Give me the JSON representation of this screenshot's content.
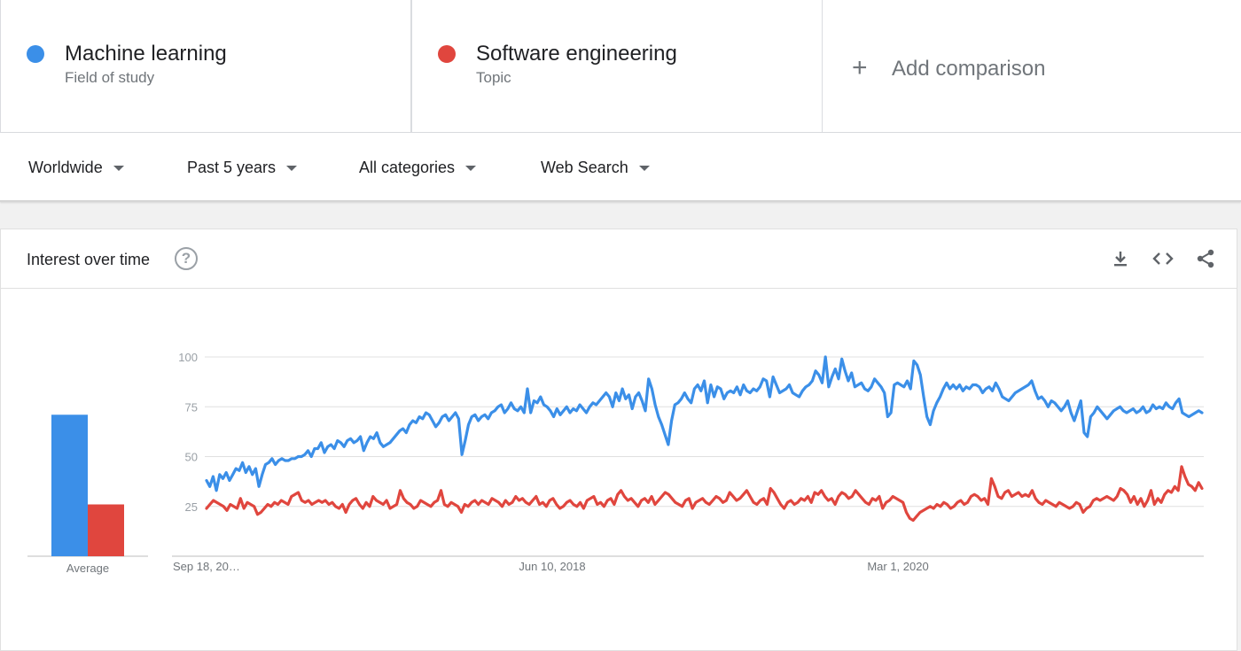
{
  "terms": [
    {
      "name": "Machine learning",
      "type": "Field of study",
      "color": "#3b8fe8"
    },
    {
      "name": "Software engineering",
      "type": "Topic",
      "color": "#e0463e"
    }
  ],
  "add_comparison": {
    "plus": "+",
    "label": "Add comparison"
  },
  "filters": {
    "region": "Worldwide",
    "time": "Past 5 years",
    "category": "All categories",
    "search_type": "Web Search"
  },
  "card": {
    "title": "Interest over time",
    "help_glyph": "?",
    "icons": [
      "download-icon",
      "embed-icon",
      "share-icon"
    ]
  },
  "chart_data": {
    "type": "line",
    "x_ticks": [
      "Sep 18, 20…",
      "Jun 10, 2018",
      "Mar 1, 2020"
    ],
    "y_ticks": [
      25,
      50,
      75,
      100
    ],
    "ylim": [
      0,
      100
    ],
    "xlabel": "",
    "ylabel": "",
    "average_label": "Average",
    "averages": [
      71,
      26
    ],
    "series": [
      {
        "name": "Machine learning",
        "color": "#3b8fe8",
        "values": [
          38,
          35,
          40,
          33,
          41,
          39,
          42,
          38,
          41,
          44,
          43,
          47,
          42,
          45,
          41,
          44,
          35,
          41,
          46,
          47,
          49,
          46,
          48,
          49,
          48,
          48,
          49,
          49,
          50,
          50,
          51,
          53,
          50,
          54,
          54,
          57,
          52,
          55,
          56,
          54,
          58,
          57,
          55,
          58,
          59,
          57,
          58,
          60,
          53,
          57,
          60,
          59,
          62,
          57,
          55,
          56,
          57,
          59,
          61,
          63,
          64,
          62,
          66,
          68,
          67,
          70,
          69,
          72,
          71,
          68,
          65,
          67,
          70,
          71,
          68,
          70,
          72,
          69,
          51,
          58,
          66,
          70,
          71,
          68,
          70,
          71,
          69,
          72,
          73,
          75,
          76,
          72,
          74,
          77,
          74,
          73,
          75,
          72,
          84,
          72,
          78,
          77,
          80,
          76,
          75,
          73,
          70,
          74,
          71,
          73,
          75,
          72,
          74,
          73,
          76,
          74,
          72,
          75,
          77,
          76,
          78,
          80,
          82,
          80,
          75,
          82,
          78,
          84,
          79,
          81,
          74,
          80,
          82,
          78,
          73,
          89,
          84,
          76,
          70,
          66,
          61,
          56,
          68,
          76,
          77,
          79,
          82,
          79,
          77,
          84,
          86,
          83,
          88,
          77,
          86,
          80,
          85,
          84,
          79,
          82,
          83,
          82,
          85,
          81,
          86,
          83,
          82,
          84,
          83,
          85,
          89,
          88,
          80,
          90,
          86,
          82,
          83,
          84,
          86,
          82,
          81,
          80,
          83,
          85,
          86,
          88,
          93,
          91,
          87,
          100,
          85,
          90,
          94,
          89,
          99,
          93,
          88,
          92,
          85,
          86,
          87,
          84,
          83,
          85,
          89,
          87,
          85,
          82,
          70,
          72,
          86,
          87,
          86,
          85,
          88,
          84,
          98,
          96,
          91,
          80,
          70,
          66,
          73,
          77,
          80,
          84,
          87,
          84,
          86,
          84,
          86,
          83,
          85,
          84,
          86,
          86,
          85,
          82,
          84,
          85,
          83,
          87,
          84,
          80,
          79,
          78,
          80,
          82,
          83,
          84,
          85,
          86,
          88,
          83,
          79,
          80,
          78,
          75,
          78,
          77,
          75,
          73,
          75,
          78,
          72,
          68,
          73,
          78,
          62,
          60,
          70,
          72,
          75,
          73,
          71,
          69,
          71,
          73,
          74,
          75,
          73,
          72,
          73,
          74,
          72,
          73,
          75,
          72,
          73,
          76,
          74,
          75,
          74,
          77,
          75,
          74,
          77,
          79,
          72,
          71,
          70,
          71,
          72,
          73,
          72
        ]
      },
      {
        "name": "Software engineering",
        "color": "#e0463e",
        "values": [
          24,
          26,
          28,
          27,
          26,
          25,
          23,
          26,
          25,
          24,
          29,
          24,
          27,
          26,
          25,
          21,
          22,
          24,
          26,
          25,
          27,
          26,
          28,
          27,
          26,
          30,
          31,
          32,
          28,
          27,
          28,
          26,
          27,
          28,
          27,
          28,
          26,
          27,
          25,
          24,
          26,
          22,
          26,
          28,
          29,
          26,
          24,
          27,
          25,
          30,
          28,
          27,
          26,
          28,
          24,
          25,
          26,
          33,
          29,
          27,
          26,
          24,
          25,
          28,
          27,
          26,
          25,
          27,
          28,
          33,
          26,
          25,
          27,
          26,
          25,
          22,
          26,
          25,
          27,
          28,
          26,
          28,
          27,
          26,
          29,
          28,
          27,
          25,
          28,
          26,
          27,
          30,
          28,
          29,
          27,
          26,
          28,
          30,
          26,
          27,
          25,
          28,
          29,
          26,
          24,
          25,
          27,
          28,
          26,
          25,
          27,
          24,
          28,
          29,
          30,
          26,
          27,
          25,
          28,
          29,
          26,
          31,
          33,
          30,
          28,
          29,
          27,
          25,
          28,
          29,
          27,
          30,
          26,
          28,
          30,
          32,
          31,
          29,
          27,
          26,
          25,
          28,
          29,
          24,
          27,
          28,
          29,
          27,
          26,
          28,
          30,
          29,
          27,
          28,
          32,
          30,
          28,
          29,
          31,
          33,
          30,
          27,
          26,
          28,
          29,
          26,
          34,
          32,
          29,
          26,
          24,
          27,
          28,
          26,
          27,
          29,
          28,
          30,
          27,
          32,
          31,
          33,
          30,
          28,
          29,
          26,
          30,
          32,
          31,
          29,
          30,
          33,
          31,
          29,
          27,
          26,
          29,
          28,
          30,
          24,
          27,
          28,
          30,
          29,
          28,
          27,
          22,
          19,
          18,
          20,
          22,
          23,
          24,
          25,
          24,
          26,
          25,
          27,
          26,
          24,
          25,
          27,
          28,
          26,
          27,
          30,
          31,
          30,
          28,
          29,
          26,
          39,
          35,
          30,
          29,
          32,
          33,
          30,
          31,
          32,
          30,
          31,
          30,
          33,
          29,
          27,
          26,
          28,
          27,
          26,
          25,
          27,
          26,
          25,
          24,
          25,
          27,
          26,
          22,
          24,
          25,
          28,
          29,
          28,
          29,
          30,
          29,
          28,
          30,
          34,
          33,
          31,
          27,
          30,
          26,
          29,
          25,
          28,
          33,
          26,
          29,
          27,
          31,
          33,
          32,
          35,
          33,
          45,
          40,
          36,
          35,
          33,
          37,
          34
        ]
      }
    ]
  }
}
